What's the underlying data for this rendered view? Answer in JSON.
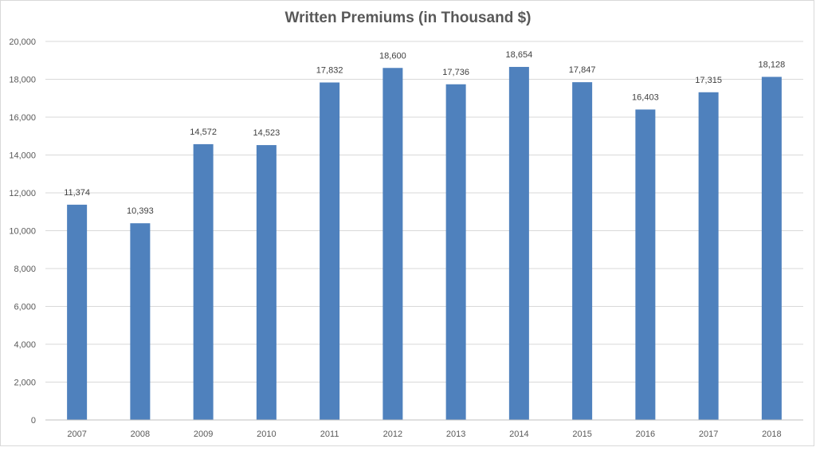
{
  "chart_data": {
    "type": "bar",
    "title": "Written Premiums  (in Thousand $)",
    "categories": [
      "2007",
      "2008",
      "2009",
      "2010",
      "2011",
      "2012",
      "2013",
      "2014",
      "2015",
      "2016",
      "2017",
      "2018"
    ],
    "values": [
      11374,
      10393,
      14572,
      14523,
      17832,
      18600,
      17736,
      18654,
      17847,
      16403,
      17315,
      18128
    ],
    "value_labels": [
      "11,374",
      "10,393",
      "14,572",
      "14,523",
      "17,832",
      "18,600",
      "17,736",
      "18,654",
      "17,847",
      "16,403",
      "17,315",
      "18,128"
    ],
    "y_ticks": [
      "0",
      "2,000",
      "4,000",
      "6,000",
      "8,000",
      "10,000",
      "12,000",
      "14,000",
      "16,000",
      "18,000",
      "20,000"
    ],
    "ylim": [
      0,
      20000
    ],
    "grid": true,
    "legend": "none",
    "bar_color": "#4f81bd",
    "grid_color": "#d9d9d9"
  }
}
